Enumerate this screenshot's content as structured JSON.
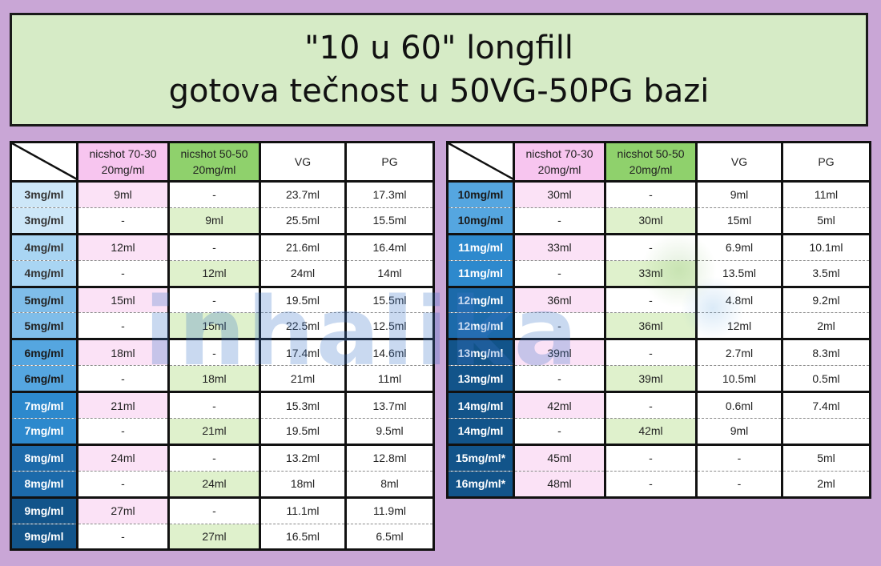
{
  "title": {
    "line1": "\"10 u 60\" longfill",
    "line2": "gotova tečnost u 50VG-50PG bazi"
  },
  "watermark": "inhalika",
  "headers": {
    "nicshot_7030_a": "nicshot 70-30",
    "nicshot_7030_b": "20mg/ml",
    "nicshot_5050_a": "nicshot 50-50",
    "nicshot_5050_b": "20mg/ml",
    "vg": "VG",
    "pg": "PG"
  },
  "colors": {
    "background": "#c9a6d6",
    "title_bg": "#d6ebc6",
    "pink_header": "#f7c5ef",
    "green_header": "#8fd16c",
    "pink_cell": "#fbe2f6",
    "green_cell": "#dff1cc"
  },
  "left_table": [
    {
      "label": "3mg/ml",
      "n7030": "9ml",
      "n5050": "-",
      "vg": "23.7ml",
      "pg": "17.3ml"
    },
    {
      "label": "3mg/ml",
      "n7030": "-",
      "n5050": "9ml",
      "vg": "25.5ml",
      "pg": "15.5ml"
    },
    {
      "label": "4mg/ml",
      "n7030": "12ml",
      "n5050": "-",
      "vg": "21.6ml",
      "pg": "16.4ml"
    },
    {
      "label": "4mg/ml",
      "n7030": "-",
      "n5050": "12ml",
      "vg": "24ml",
      "pg": "14ml"
    },
    {
      "label": "5mg/ml",
      "n7030": "15ml",
      "n5050": "-",
      "vg": "19.5ml",
      "pg": "15.5ml"
    },
    {
      "label": "5mg/ml",
      "n7030": "-",
      "n5050": "15ml",
      "vg": "22.5ml",
      "pg": "12.5ml"
    },
    {
      "label": "6mg/ml",
      "n7030": "18ml",
      "n5050": "-",
      "vg": "17.4ml",
      "pg": "14.6ml"
    },
    {
      "label": "6mg/ml",
      "n7030": "-",
      "n5050": "18ml",
      "vg": "21ml",
      "pg": "11ml"
    },
    {
      "label": "7mg/ml",
      "n7030": "21ml",
      "n5050": "-",
      "vg": "15.3ml",
      "pg": "13.7ml"
    },
    {
      "label": "7mg/ml",
      "n7030": "-",
      "n5050": "21ml",
      "vg": "19.5ml",
      "pg": "9.5ml"
    },
    {
      "label": "8mg/ml",
      "n7030": "24ml",
      "n5050": "-",
      "vg": "13.2ml",
      "pg": "12.8ml"
    },
    {
      "label": "8mg/ml",
      "n7030": "-",
      "n5050": "24ml",
      "vg": "18ml",
      "pg": "8ml"
    },
    {
      "label": "9mg/ml",
      "n7030": "27ml",
      "n5050": "-",
      "vg": "11.1ml",
      "pg": "11.9ml"
    },
    {
      "label": "9mg/ml",
      "n7030": "-",
      "n5050": "27ml",
      "vg": "16.5ml",
      "pg": "6.5ml"
    }
  ],
  "right_table": [
    {
      "label": "10mg/ml",
      "n7030": "30ml",
      "n5050": "-",
      "vg": "9ml",
      "pg": "11ml"
    },
    {
      "label": "10mg/ml",
      "n7030": "-",
      "n5050": "30ml",
      "vg": "15ml",
      "pg": "5ml"
    },
    {
      "label": "11mg/ml",
      "n7030": "33ml",
      "n5050": "-",
      "vg": "6.9ml",
      "pg": "10.1ml"
    },
    {
      "label": "11mg/ml",
      "n7030": "-",
      "n5050": "33ml",
      "vg": "13.5ml",
      "pg": "3.5ml"
    },
    {
      "label": "12mg/ml",
      "n7030": "36ml",
      "n5050": "-",
      "vg": "4.8ml",
      "pg": "9.2ml"
    },
    {
      "label": "12mg/ml",
      "n7030": "-",
      "n5050": "36ml",
      "vg": "12ml",
      "pg": "2ml"
    },
    {
      "label": "13mg/ml",
      "n7030": "39ml",
      "n5050": "-",
      "vg": "2.7ml",
      "pg": "8.3ml"
    },
    {
      "label": "13mg/ml",
      "n7030": "-",
      "n5050": "39ml",
      "vg": "10.5ml",
      "pg": "0.5ml"
    },
    {
      "label": "14mg/ml",
      "n7030": "42ml",
      "n5050": "-",
      "vg": "0.6ml",
      "pg": "7.4ml"
    },
    {
      "label": "14mg/ml",
      "n7030": "-",
      "n5050": "42ml",
      "vg": "9ml",
      "pg": ""
    },
    {
      "label": "15mg/ml*",
      "n7030": "45ml",
      "n5050": "-",
      "vg": "-",
      "pg": "5ml"
    },
    {
      "label": "16mg/ml*",
      "n7030": "48ml",
      "n5050": "-",
      "vg": "-",
      "pg": "2ml"
    }
  ]
}
